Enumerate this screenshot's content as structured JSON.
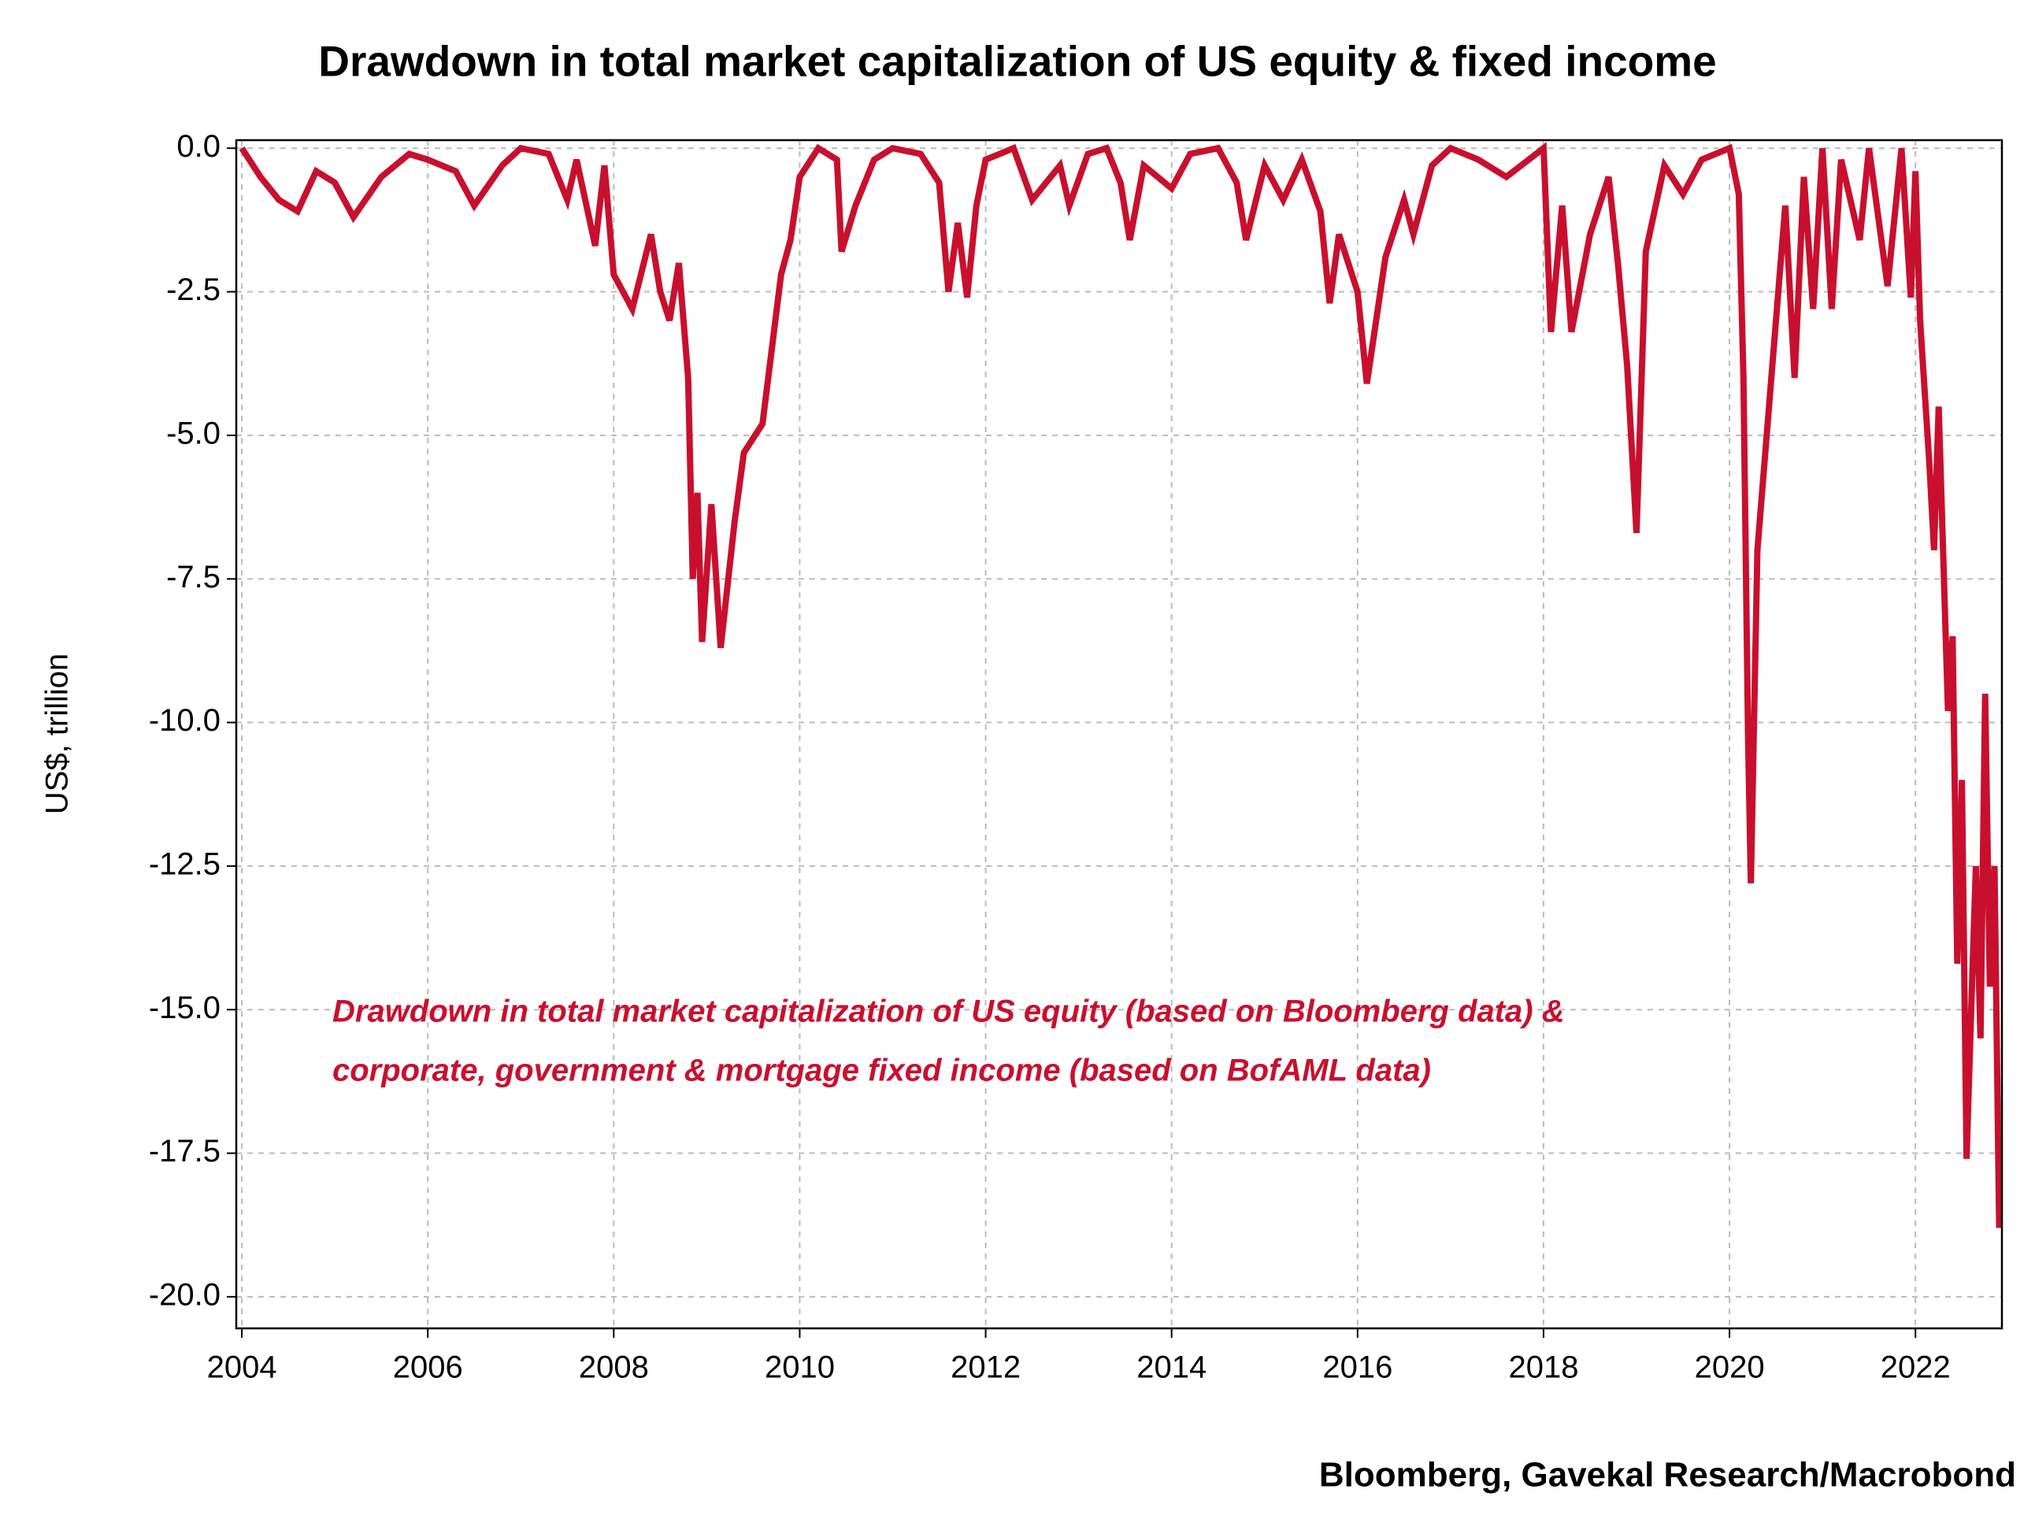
{
  "chart_data": {
    "type": "line",
    "title": "Drawdown in total market capitalization of US equity & fixed income",
    "y_label": "US$, trillion",
    "source": "Bloomberg, Gavekal Research/Macrobond",
    "annotations": [
      "Drawdown in total market capitalization of US equity (based on Bloomberg data) &",
      "corporate, government & mortgage fixed income (based on BofAML data)"
    ],
    "xlim": [
      2003.94,
      2022.93
    ],
    "ylim": [
      -20.55,
      0.14
    ],
    "xticks": [
      2004,
      2006,
      2008,
      2010,
      2012,
      2014,
      2016,
      2018,
      2020,
      2022
    ],
    "yticks": [
      {
        "value": 0,
        "label": "0.0"
      },
      -2.5,
      {
        "value": -5,
        "label": "-5.0"
      },
      -7.5,
      {
        "value": -10,
        "label": "-10.0"
      },
      -12.5,
      {
        "value": -15,
        "label": "-15.0"
      },
      -17.5,
      {
        "value": -20,
        "label": "-20.0"
      }
    ],
    "grid": true,
    "series": [
      {
        "name": "Drawdown",
        "color": "#c8102e",
        "x": [
          2004.0,
          2004.2,
          2004.4,
          2004.6,
          2004.8,
          2005.0,
          2005.2,
          2005.5,
          2005.8,
          2006.0,
          2006.3,
          2006.5,
          2006.8,
          2007.0,
          2007.3,
          2007.5,
          2007.6,
          2007.8,
          2007.9,
          2008.0,
          2008.2,
          2008.4,
          2008.5,
          2008.6,
          2008.7,
          2008.8,
          2008.85,
          2008.9,
          2008.95,
          2009.05,
          2009.15,
          2009.3,
          2009.4,
          2009.6,
          2009.7,
          2009.8,
          2009.9,
          2010.0,
          2010.2,
          2010.4,
          2010.45,
          2010.6,
          2010.8,
          2011.0,
          2011.3,
          2011.5,
          2011.6,
          2011.7,
          2011.8,
          2011.9,
          2012.0,
          2012.3,
          2012.5,
          2012.8,
          2012.9,
          2013.1,
          2013.3,
          2013.45,
          2013.55,
          2013.7,
          2014.0,
          2014.2,
          2014.5,
          2014.7,
          2014.8,
          2015.0,
          2015.2,
          2015.4,
          2015.6,
          2015.7,
          2015.8,
          2016.0,
          2016.1,
          2016.3,
          2016.5,
          2016.6,
          2016.8,
          2017.0,
          2017.3,
          2017.6,
          2018.0,
          2018.08,
          2018.2,
          2018.3,
          2018.5,
          2018.7,
          2018.8,
          2018.9,
          2019.0,
          2019.1,
          2019.3,
          2019.5,
          2019.7,
          2020.0,
          2020.1,
          2020.15,
          2020.2,
          2020.23,
          2020.3,
          2020.4,
          2020.5,
          2020.6,
          2020.7,
          2020.8,
          2020.9,
          2021.0,
          2021.1,
          2021.2,
          2021.4,
          2021.5,
          2021.7,
          2021.85,
          2021.95,
          2022.0,
          2022.05,
          2022.15,
          2022.2,
          2022.25,
          2022.35,
          2022.4,
          2022.45,
          2022.5,
          2022.55,
          2022.6,
          2022.65,
          2022.7,
          2022.75,
          2022.8,
          2022.85,
          2022.9
        ],
        "values": [
          0,
          -0.5,
          -0.9,
          -1.1,
          -0.4,
          -0.6,
          -1.2,
          -0.5,
          -0.1,
          -0.2,
          -0.4,
          -1.0,
          -0.3,
          0,
          -0.1,
          -0.9,
          -0.2,
          -1.7,
          -0.3,
          -2.2,
          -2.8,
          -1.5,
          -2.5,
          -3.0,
          -2.0,
          -4.0,
          -7.5,
          -6.0,
          -8.6,
          -6.2,
          -8.7,
          -6.5,
          -5.3,
          -4.8,
          -3.5,
          -2.2,
          -1.6,
          -0.5,
          0,
          -0.2,
          -1.8,
          -1.0,
          -0.2,
          0,
          -0.1,
          -0.6,
          -2.5,
          -1.3,
          -2.6,
          -1.0,
          -0.2,
          0,
          -0.9,
          -0.3,
          -1.0,
          -0.1,
          0,
          -0.6,
          -1.6,
          -0.3,
          -0.7,
          -0.1,
          0,
          -0.6,
          -1.6,
          -0.3,
          -0.9,
          -0.2,
          -1.1,
          -2.7,
          -1.5,
          -2.5,
          -4.1,
          -1.9,
          -0.9,
          -1.5,
          -0.3,
          0,
          -0.2,
          -0.5,
          0,
          -3.2,
          -1.0,
          -3.2,
          -1.5,
          -0.5,
          -2.0,
          -3.8,
          -6.7,
          -1.8,
          -0.3,
          -0.8,
          -0.2,
          0,
          -0.8,
          -4.0,
          -10.3,
          -12.8,
          -7.0,
          -5.0,
          -3.0,
          -1.0,
          -4.0,
          -0.5,
          -2.8,
          0,
          -2.8,
          -0.2,
          -1.6,
          0,
          -2.4,
          0,
          -2.6,
          -0.4,
          -3.0,
          -5.5,
          -7.0,
          -4.5,
          -9.8,
          -8.5,
          -14.2,
          -11.0,
          -17.6,
          -15.0,
          -12.5,
          -15.5,
          -9.5,
          -14.6,
          -12.5,
          -18.8
        ]
      }
    ]
  }
}
